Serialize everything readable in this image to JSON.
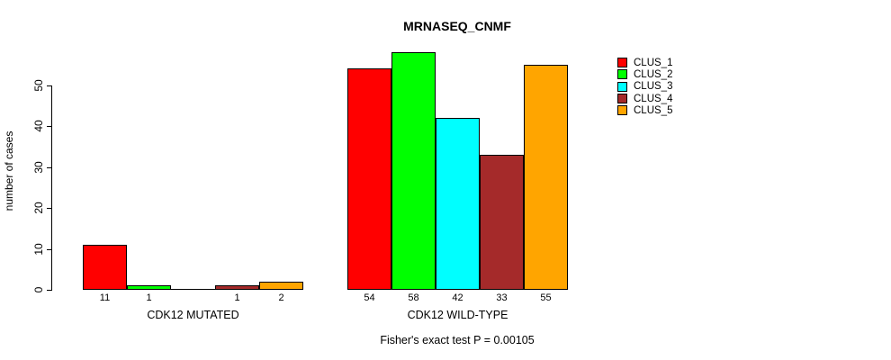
{
  "chart_data": {
    "type": "bar",
    "title": "MRNASEQ_CNMF",
    "ylabel": "number of cases",
    "subtitle": "Fisher's exact test P = 0.00105",
    "ylim": [
      0,
      58
    ],
    "yticks": [
      0,
      10,
      20,
      30,
      40,
      50
    ],
    "grid": false,
    "legend_position": "right-outside",
    "background_color": "#ffffff",
    "bar_border_color": "#000000",
    "clusters": [
      {
        "label": "CLUS_1",
        "color": "#FF0000"
      },
      {
        "label": "CLUS_2",
        "color": "#00FF00"
      },
      {
        "label": "CLUS_3",
        "color": "#00FFFF"
      },
      {
        "label": "CLUS_4",
        "color": "#A52A2A"
      },
      {
        "label": "CLUS_5",
        "color": "#FFA500"
      }
    ],
    "groups": [
      {
        "label": "CDK12 MUTATED",
        "values": [
          11,
          1,
          0,
          1,
          2
        ],
        "bar_labels": [
          "11",
          "1",
          "",
          "1",
          "2"
        ]
      },
      {
        "label": "CDK12 WILD-TYPE",
        "values": [
          54,
          58,
          42,
          33,
          55
        ],
        "bar_labels": [
          "54",
          "58",
          "42",
          "33",
          "55"
        ]
      }
    ]
  }
}
